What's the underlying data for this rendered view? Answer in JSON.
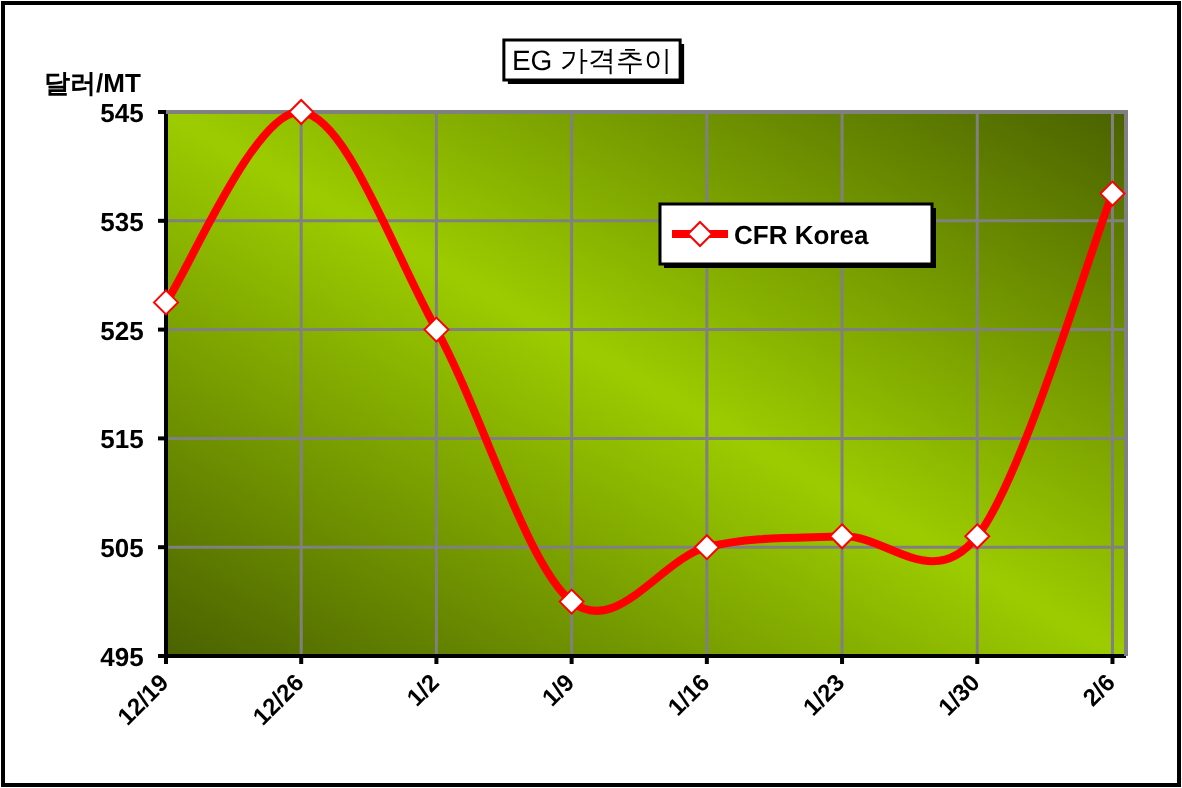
{
  "chart_data": {
    "type": "line",
    "title": "EG 가격추이",
    "ylabel": "달러/MT",
    "categories": [
      "12/19",
      "12/26",
      "1/2",
      "1/9",
      "1/16",
      "1/23",
      "1/30",
      "2/6"
    ],
    "series": [
      {
        "name": "CFR Korea",
        "color": "#ff0000",
        "values": [
          527.5,
          545,
          525,
          500,
          505,
          506,
          506,
          537.5
        ]
      }
    ],
    "ylim": [
      495,
      545
    ],
    "yticks": [
      495,
      505,
      515,
      525,
      535,
      545
    ],
    "grid": true,
    "legend": "top right",
    "marker": "diamond",
    "line_style": "solid"
  }
}
